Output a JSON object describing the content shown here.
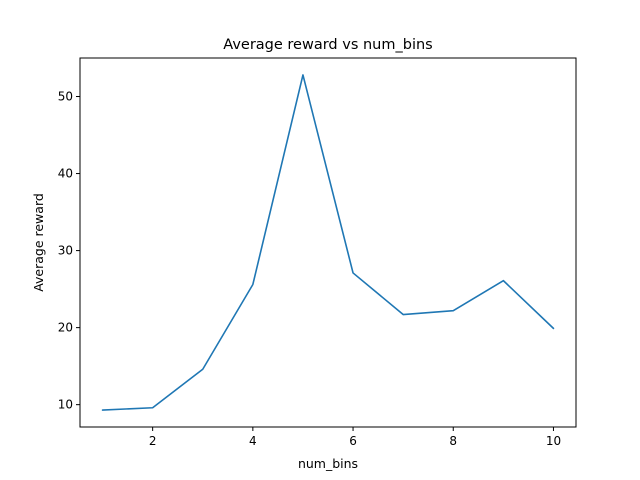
{
  "chart_data": {
    "type": "line",
    "title": "Average reward vs num_bins",
    "xlabel": "num_bins",
    "ylabel": "Average reward",
    "xlim": [
      0.55,
      10.45
    ],
    "ylim": [
      7.1,
      55.0
    ],
    "xticks": [
      2,
      4,
      6,
      8,
      10
    ],
    "yticks": [
      10,
      20,
      30,
      40,
      50
    ],
    "grid": false,
    "series": [
      {
        "color": "#1f77b4",
        "x": [
          1,
          2,
          3,
          4,
          5,
          6,
          7,
          8,
          9,
          10
        ],
        "y": [
          9.3,
          9.6,
          14.6,
          25.6,
          52.8,
          27.1,
          21.7,
          22.2,
          26.1,
          19.9
        ]
      }
    ]
  }
}
